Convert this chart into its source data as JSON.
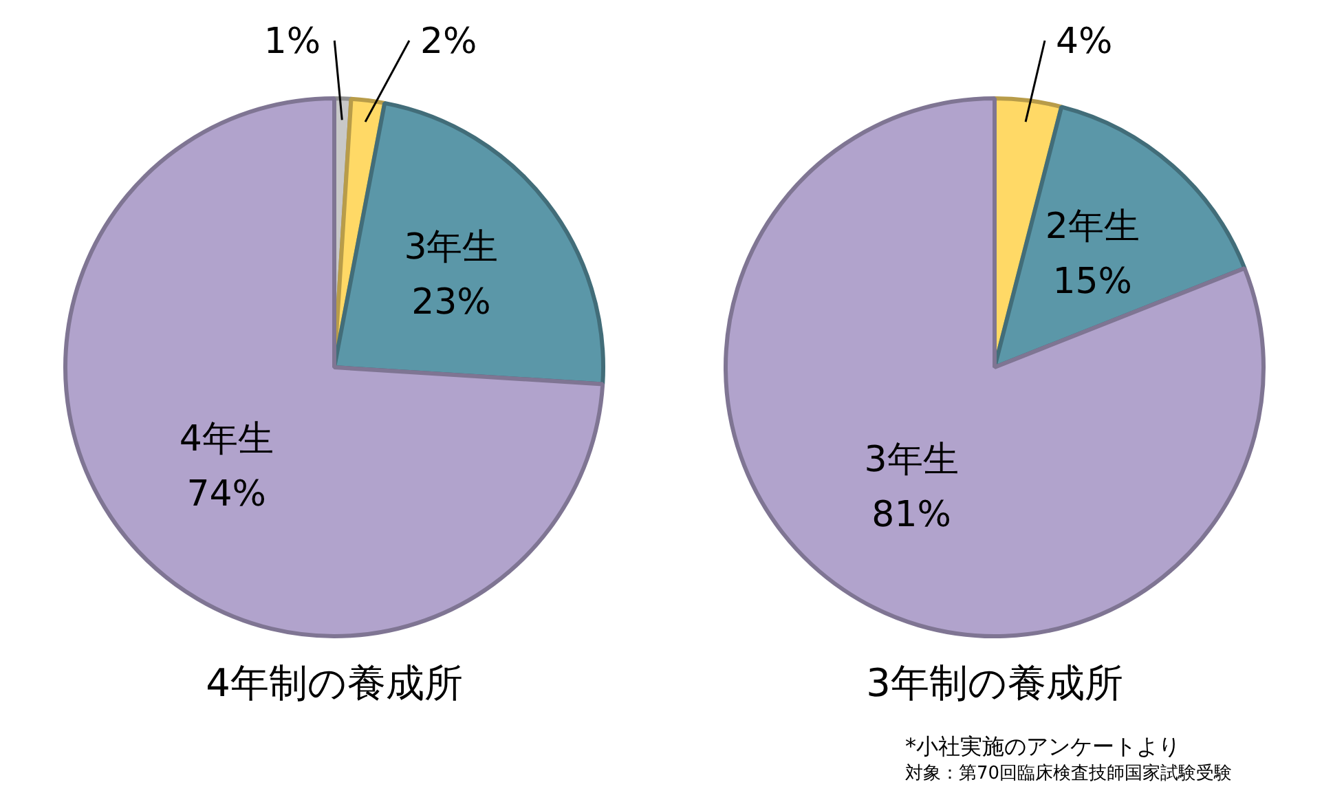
{
  "chart_data": [
    {
      "type": "pie",
      "title": "4年制の養成所",
      "categories": [
        null,
        null,
        "3年生",
        "4年生"
      ],
      "values": [
        1,
        2,
        23,
        74
      ],
      "value_labels": [
        "1%",
        "2%",
        "23%",
        "74%"
      ],
      "colors": [
        "#c8c8c8",
        "#ffd966",
        "#5b97a8",
        "#b1a3cc"
      ],
      "legend": false
    },
    {
      "type": "pie",
      "title": "3年制の養成所",
      "categories": [
        null,
        "2年生",
        "3年生"
      ],
      "values": [
        4,
        15,
        81
      ],
      "value_labels": [
        "4%",
        "15%",
        "81%"
      ],
      "colors": [
        "#ffd966",
        "#5b97a8",
        "#b1a3cc"
      ],
      "legend": false,
      "annotations": [
        "*小社実施のアンケートより",
        "対象：第70回臨床検査技師国家試験受験"
      ]
    }
  ]
}
